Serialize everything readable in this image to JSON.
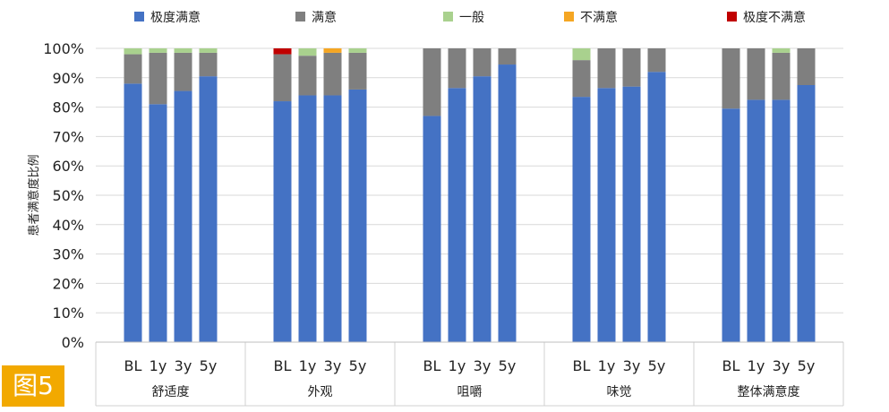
{
  "figure_label": "图5",
  "chart_data": {
    "type": "bar",
    "stacked": true,
    "ylabel": "患者满意度比例",
    "ylim": [
      0,
      100
    ],
    "yticks": [
      "0%",
      "10%",
      "20%",
      "30%",
      "40%",
      "50%",
      "60%",
      "70%",
      "80%",
      "90%",
      "100%"
    ],
    "grid": true,
    "legend_position": "top",
    "colors": {
      "极度满意": "#4472c4",
      "满意": "#7f7f7f",
      "一般": "#a9d18e",
      "不满意": "#f5a623",
      "极度不满意": "#c00000"
    },
    "groups": [
      {
        "name": "舒适度",
        "categories": [
          "BL",
          "1y",
          "3y",
          "5y"
        ]
      },
      {
        "name": "外观",
        "categories": [
          "BL",
          "1y",
          "3y",
          "5y"
        ]
      },
      {
        "name": "咀嚼",
        "categories": [
          "BL",
          "1y",
          "3y",
          "5y"
        ]
      },
      {
        "name": "味觉",
        "categories": [
          "BL",
          "1y",
          "3y",
          "5y"
        ]
      },
      {
        "name": "整体满意度",
        "categories": [
          "BL",
          "1y",
          "3y",
          "5y"
        ]
      }
    ],
    "series": [
      {
        "name": "极度满意",
        "values": [
          [
            88,
            81,
            85.5,
            90.5
          ],
          [
            82,
            84,
            84,
            86
          ],
          [
            77,
            86.5,
            90.5,
            94.5
          ],
          [
            83.5,
            86.5,
            87,
            92
          ],
          [
            79.5,
            82.5,
            82.5,
            87.5
          ]
        ]
      },
      {
        "name": "满意",
        "values": [
          [
            10,
            17.5,
            13,
            8
          ],
          [
            16,
            13.5,
            14.5,
            12.5
          ],
          [
            23,
            13.5,
            9.5,
            5.5
          ],
          [
            12.5,
            13.5,
            13,
            8
          ],
          [
            20.5,
            17.5,
            16,
            12.5
          ]
        ]
      },
      {
        "name": "一般",
        "values": [
          [
            2,
            1.5,
            1.5,
            1.5
          ],
          [
            0,
            2.5,
            0,
            1.5
          ],
          [
            0,
            0,
            0,
            0
          ],
          [
            4,
            0,
            0,
            0
          ],
          [
            0,
            0,
            1.5,
            0
          ]
        ]
      },
      {
        "name": "不满意",
        "values": [
          [
            0,
            0,
            0,
            0
          ],
          [
            0,
            0,
            1.5,
            0
          ],
          [
            0,
            0,
            0,
            0
          ],
          [
            0,
            0,
            0,
            0
          ],
          [
            0,
            0,
            0,
            0
          ]
        ]
      },
      {
        "name": "极度不满意",
        "values": [
          [
            0,
            0,
            0,
            0
          ],
          [
            2,
            0,
            0,
            0
          ],
          [
            0,
            0,
            0,
            0
          ],
          [
            0,
            0,
            0,
            0
          ],
          [
            0,
            0,
            0,
            0
          ]
        ]
      }
    ]
  }
}
